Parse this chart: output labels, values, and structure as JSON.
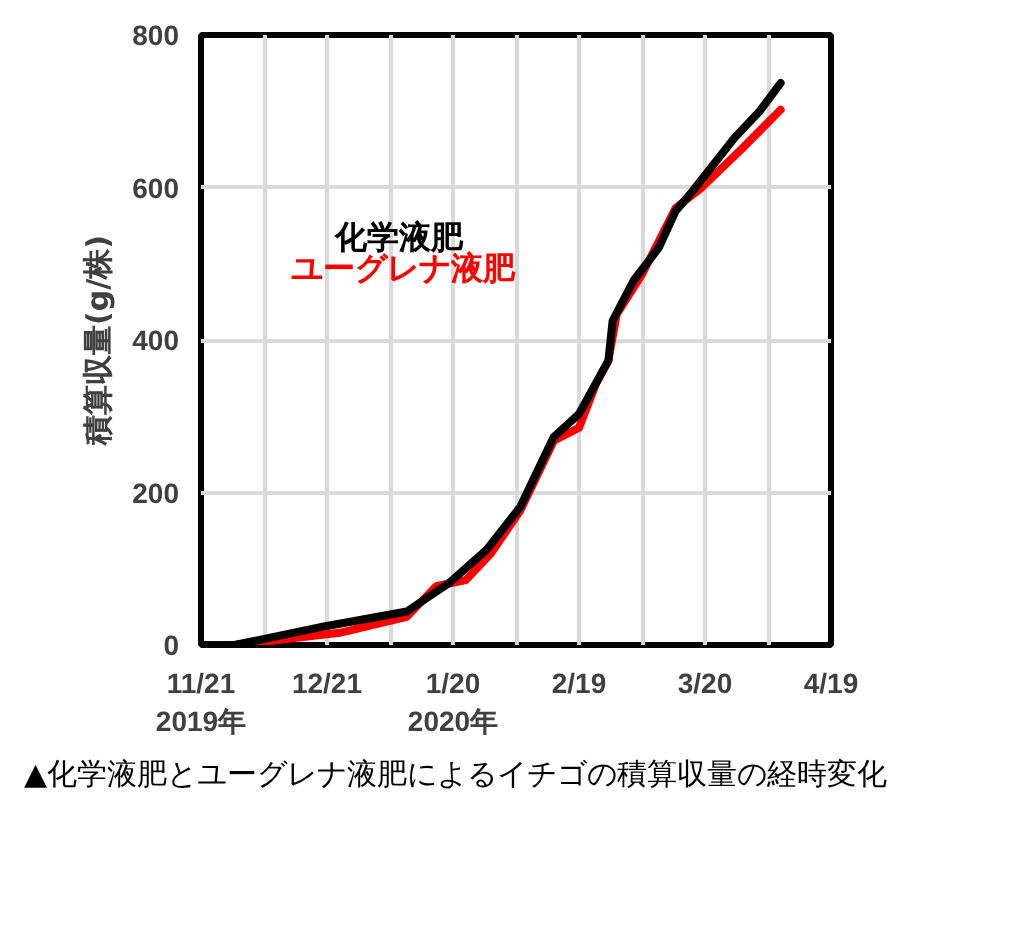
{
  "chart_data": {
    "type": "line",
    "ylabel": "積算収量(g/株)",
    "ylim": [
      0,
      800
    ],
    "yticks": [
      0,
      200,
      400,
      600,
      800
    ],
    "xlim": [
      "2019-11-21",
      "2020-04-19"
    ],
    "xticks": [
      {
        "value": "2019-11-21",
        "label": "11/21\n2019年"
      },
      {
        "value": "2019-12-06",
        "label": null
      },
      {
        "value": "2019-12-21",
        "label": "12/21"
      },
      {
        "value": "2020-01-05",
        "label": null
      },
      {
        "value": "2020-01-20",
        "label": "1/20\n2020年"
      },
      {
        "value": "2020-02-04",
        "label": null
      },
      {
        "value": "2020-02-19",
        "label": "2/19"
      },
      {
        "value": "2020-03-05",
        "label": null
      },
      {
        "value": "2020-03-20",
        "label": "3/20"
      },
      {
        "value": "2020-04-04",
        "label": null
      },
      {
        "value": "2020-04-19",
        "label": "4/19"
      }
    ],
    "grid": true,
    "marker": "none",
    "line_style": "solid",
    "series": [
      {
        "name": "ユーグレナ液肥",
        "color": "#ff0000",
        "x": [
          "2019-11-21",
          "2019-11-29",
          "2019-12-24",
          "2020-01-09",
          "2020-01-16",
          "2020-01-23",
          "2020-01-29",
          "2020-02-05",
          "2020-02-13",
          "2020-02-19",
          "2020-02-23",
          "2020-02-26",
          "2020-02-28",
          "2020-03-05",
          "2020-03-13",
          "2020-03-19",
          "2020-03-29",
          "2020-04-07"
        ],
        "values": [
          0,
          0,
          16,
          37,
          77,
          85,
          120,
          176,
          268,
          285,
          342,
          373,
          434,
          486,
          573,
          599,
          652,
          702
        ]
      },
      {
        "name": "化学液肥",
        "color": "#000000",
        "x": [
          "2019-11-21",
          "2019-11-29",
          "2019-12-20",
          "2020-01-09",
          "2020-01-19",
          "2020-01-28",
          "2020-02-05",
          "2020-02-13",
          "2020-02-19",
          "2020-02-26",
          "2020-02-27",
          "2020-03-03",
          "2020-03-09",
          "2020-03-13",
          "2020-03-17",
          "2020-03-27",
          "2020-04-02",
          "2020-04-07"
        ],
        "values": [
          0,
          0,
          24,
          44,
          81,
          125,
          181,
          273,
          303,
          373,
          425,
          478,
          521,
          569,
          595,
          665,
          700,
          737
        ]
      }
    ],
    "annotations": [
      "▲化学液肥とユーグレナ液肥によるイチゴの積算収量の経時変化"
    ]
  }
}
